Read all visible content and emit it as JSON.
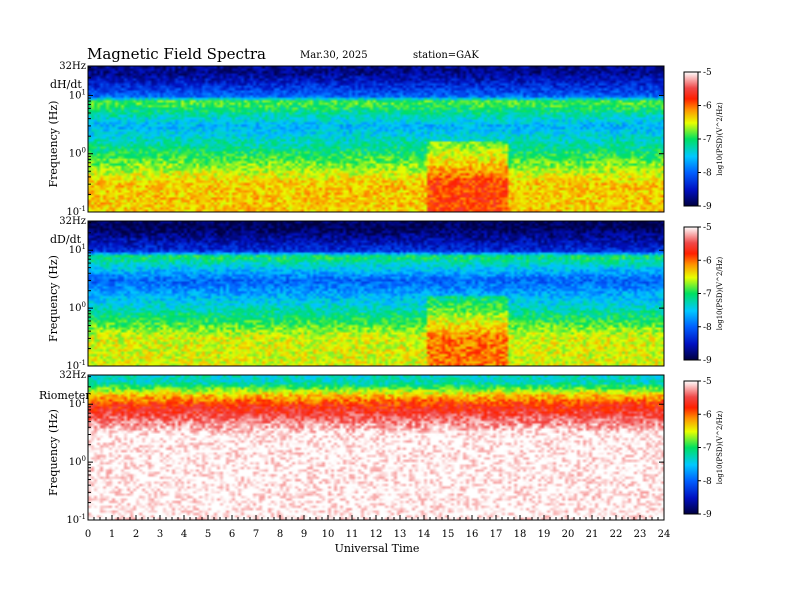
{
  "header": {
    "title": "Magnetic  Field  Spectra",
    "date": "Mar.30, 2025",
    "station": "station=GAK"
  },
  "x_axis": {
    "label": "Universal Time",
    "ticks": [
      "0",
      "1",
      "2",
      "3",
      "4",
      "5",
      "6",
      "7",
      "8",
      "9",
      "10",
      "11",
      "12",
      "13",
      "14",
      "15",
      "16",
      "17",
      "18",
      "19",
      "20",
      "21",
      "22",
      "23",
      "24"
    ]
  },
  "colorbar": {
    "ticks": [
      "-5",
      "-6",
      "-7",
      "-8",
      "-9"
    ],
    "label": "log10(PSD)(V^2/Hz)"
  },
  "chart_data": [
    {
      "type": "heatmap",
      "panel_label": "dH/dt",
      "ylabel": "Frequency  (Hz)",
      "y_scale": "log",
      "y_ticks": [
        "32Hz",
        "10^1",
        "10^0",
        "10^-1"
      ],
      "x_range": [
        0,
        24
      ],
      "y_range_hz": [
        0.1,
        32
      ],
      "color_range": [
        -9,
        -5
      ],
      "bands": [
        {
          "freq_hz": 25,
          "log_psd": -8.7
        },
        {
          "freq_hz": 10,
          "log_psd": -8.0
        },
        {
          "freq_hz": 8,
          "log_psd": -6.8
        },
        {
          "freq_hz": 3,
          "log_psd": -7.6
        },
        {
          "freq_hz": 1,
          "log_psd": -7.0
        },
        {
          "freq_hz": 0.3,
          "log_psd": -6.3
        }
      ]
    },
    {
      "type": "heatmap",
      "panel_label": "dD/dt",
      "ylabel": "Frequency  (Hz)",
      "y_scale": "log",
      "y_ticks": [
        "32Hz",
        "10^1",
        "10^0",
        "10^-1"
      ],
      "x_range": [
        0,
        24
      ],
      "y_range_hz": [
        0.1,
        32
      ],
      "color_range": [
        -9,
        -5
      ],
      "bands": [
        {
          "freq_hz": 25,
          "log_psd": -8.9
        },
        {
          "freq_hz": 10,
          "log_psd": -8.3
        },
        {
          "freq_hz": 8,
          "log_psd": -7.0
        },
        {
          "freq_hz": 3,
          "log_psd": -8.0
        },
        {
          "freq_hz": 1,
          "log_psd": -7.3
        },
        {
          "freq_hz": 0.3,
          "log_psd": -6.5
        }
      ]
    },
    {
      "type": "heatmap",
      "panel_label": "Riometer",
      "ylabel": "Frequency  (Hz)",
      "y_scale": "log",
      "y_ticks": [
        "32Hz",
        "10^1",
        "10^0",
        "10^-1"
      ],
      "x_range": [
        0,
        24
      ],
      "y_range_hz": [
        0.1,
        32
      ],
      "color_range": [
        -9,
        -5
      ],
      "bands": [
        {
          "freq_hz": 25,
          "log_psd": -7.3
        },
        {
          "freq_hz": 15,
          "log_psd": -6.3
        },
        {
          "freq_hz": 10,
          "log_psd": -5.8
        },
        {
          "freq_hz": 3,
          "log_psd": -5.0
        },
        {
          "freq_hz": 1,
          "log_psd": -5.0
        },
        {
          "freq_hz": 0.3,
          "log_psd": -5.0
        }
      ]
    }
  ]
}
